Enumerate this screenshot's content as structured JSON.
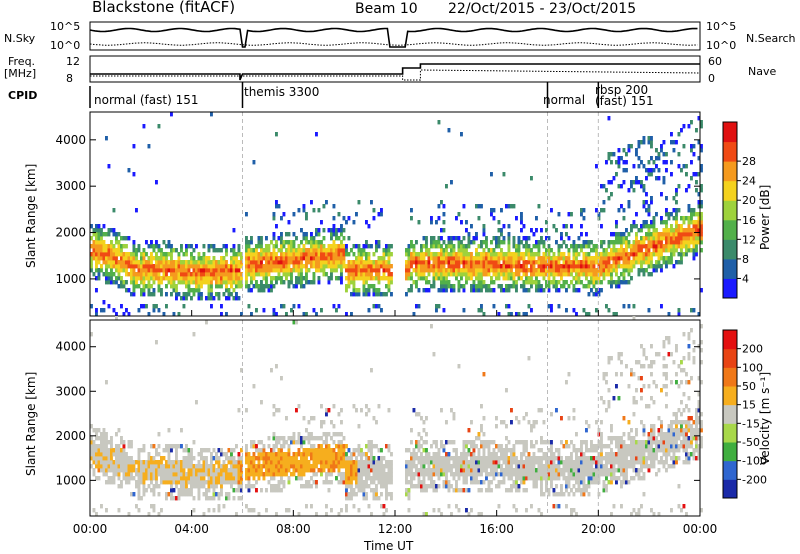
{
  "header": {
    "station": "Blackstone (fitACF)",
    "beam": "Beam 10",
    "daterange": "22/Oct/2015 - 23/Oct/2015"
  },
  "side_labels": {
    "nsky": "N.Sky",
    "nsearch": "N.Search",
    "freq_top": "Freq.",
    "freq_unit": "[MHz]",
    "nave": "Nave",
    "cpid": "CPID"
  },
  "small_axes": {
    "nsky_ticks": [
      "10^5",
      "10^0"
    ],
    "nsearch_ticks": [
      "10^5",
      "10^0"
    ],
    "freq_ticks": [
      "12",
      "8"
    ],
    "nave_ticks": [
      "60",
      "0"
    ]
  },
  "cpid_segments": [
    {
      "label": "normal (fast) 151",
      "start": 0
    },
    {
      "label": "themis 3300",
      "start": 6
    },
    {
      "label": "normal",
      "start": 18
    },
    {
      "label": "rbsp 200",
      "start": 20
    },
    {
      "label": "(fast) 151",
      "start": 20
    }
  ],
  "chart_data": [
    {
      "type": "heatmap",
      "name": "power",
      "ylabel": "Slant Range [km]",
      "yticks": [
        "1000",
        "2000",
        "3000",
        "4000"
      ],
      "ylim": [
        200,
        4600
      ],
      "colorbar_label": "Power [dB]",
      "colorbar_ticks": [
        "4",
        "8",
        "12",
        "16",
        "20",
        "24",
        "28"
      ],
      "colors": [
        "#1a1aff",
        "#1f5fa8",
        "#3b8a6a",
        "#52b04a",
        "#9ed23c",
        "#f4d21e",
        "#f59a1e",
        "#f04a14",
        "#e01010"
      ]
    },
    {
      "type": "heatmap",
      "name": "velocity",
      "ylabel": "Slant Range [km]",
      "yticks": [
        "1000",
        "2000",
        "3000",
        "4000"
      ],
      "ylim": [
        200,
        4600
      ],
      "colorbar_label": "Velocity [m s⁻¹]",
      "colorbar_ticks": [
        "200",
        "100",
        "50",
        "15",
        "-15",
        "-50",
        "-100",
        "-200"
      ],
      "colors": [
        "#1a2aa8",
        "#2f66d0",
        "#3fae3f",
        "#a8d84a",
        "#c8c8c0",
        "#f6ae1e",
        "#f07818",
        "#e84414",
        "#e41010"
      ]
    }
  ],
  "xaxis": {
    "label": "Time UT",
    "ticks": [
      "00:00",
      "04:00",
      "08:00",
      "12:00",
      "16:00",
      "20:00",
      "00:00"
    ]
  }
}
